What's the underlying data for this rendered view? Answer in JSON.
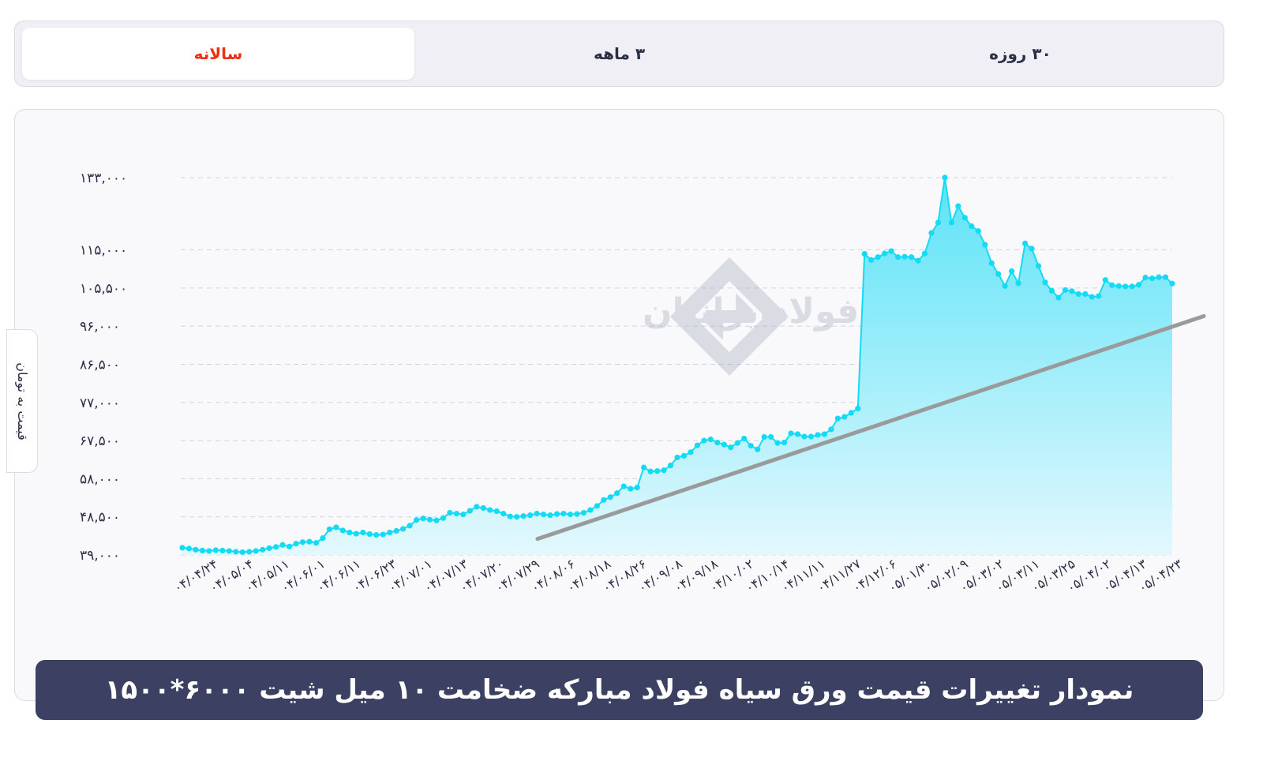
{
  "tabs": [
    {
      "label": "سالانه",
      "active": true
    },
    {
      "label": "۳ ماهه",
      "active": false
    },
    {
      "label": "۳۰ روزه",
      "active": false
    }
  ],
  "watermark": "فولادایرانیان",
  "yaxis_title": "قیمت به تومان",
  "caption": "نمودار تغییرات قیمت ورق سیاه فولاد مبارکه ضخامت ۱۰ میل شیت ۶۰۰۰*۱۵۰۰",
  "colors": {
    "line": "#14dbf5",
    "area_top": "#5ce3f7",
    "area_bottom": "#e3f8fd",
    "trend": "#9a9a9a",
    "active_tab": "#ef2e10",
    "caption_bg": "#3c4062"
  },
  "chart_data": {
    "type": "area",
    "ylabel": "قیمت به تومان",
    "ylim": [
      39000,
      133000
    ],
    "yticks": [
      {
        "value": 39000,
        "label": "۳۹,۰۰۰"
      },
      {
        "value": 48500,
        "label": "۴۸,۵۰۰"
      },
      {
        "value": 58000,
        "label": "۵۸,۰۰۰"
      },
      {
        "value": 67500,
        "label": "۶۷,۵۰۰"
      },
      {
        "value": 77000,
        "label": "۷۷,۰۰۰"
      },
      {
        "value": 86500,
        "label": "۸۶,۵۰۰"
      },
      {
        "value": 96000,
        "label": "۹۶,۰۰۰"
      },
      {
        "value": 105500,
        "label": "۱۰۵,۵۰۰"
      },
      {
        "value": 115000,
        "label": "۱۱۵,۰۰۰"
      },
      {
        "value": 133000,
        "label": "۱۳۳,۰۰۰"
      }
    ],
    "xtick_labels": [
      "۰۴/۰۴/۲۴",
      "۰۴/۰۵/۰۴",
      "۰۴/۰۵/۱۱",
      "۰۴/۰۶/۰۱",
      "۰۴/۰۶/۱۱",
      "۰۴/۰۶/۲۳",
      "۰۴/۰۷/۰۱",
      "۰۴/۰۷/۱۳",
      "۰۴/۰۷/۲۰",
      "۰۴/۰۷/۲۹",
      "۰۴/۰۸/۰۶",
      "۰۴/۰۸/۱۸",
      "۰۴/۰۸/۲۶",
      "۰۴/۰۹/۰۸",
      "۰۴/۰۹/۱۸",
      "۰۴/۱۰/۰۲",
      "۰۴/۱۰/۱۴",
      "۰۴/۱۱/۱۱",
      "۰۴/۱۱/۲۷",
      "۰۴/۱۲/۰۶",
      "۰۵/۰۱/۳۰",
      "۰۵/۰۲/۰۹",
      "۰۵/۰۳/۰۲",
      "۰۵/۰۳/۱۱",
      "۰۵/۰۳/۲۵",
      "۰۵/۰۴/۰۲",
      "۰۵/۰۴/۱۳",
      "۰۵/۰۴/۲۳"
    ],
    "values": [
      40800,
      40600,
      40300,
      40100,
      40000,
      40200,
      40100,
      40000,
      39800,
      39700,
      39800,
      40000,
      40300,
      40700,
      41000,
      41500,
      41100,
      41800,
      42200,
      42300,
      42000,
      43200,
      45400,
      45900,
      45100,
      44600,
      44300,
      44600,
      44200,
      44000,
      44100,
      44600,
      45000,
      45500,
      46300,
      47700,
      48100,
      47800,
      47600,
      48200,
      49500,
      49300,
      49100,
      50000,
      51000,
      50700,
      50200,
      49900,
      49300,
      48600,
      48500,
      48700,
      48900,
      49300,
      49100,
      48900,
      49200,
      49300,
      49100,
      49200,
      49500,
      50200,
      51200,
      52700,
      53400,
      54400,
      56100,
      55500,
      55800,
      60800,
      59800,
      59900,
      60100,
      61300,
      63300,
      63700,
      64600,
      66300,
      67500,
      67800,
      67000,
      66500,
      65800,
      66900,
      68000,
      66200,
      65300,
      68400,
      68400,
      66900,
      67000,
      69300,
      69100,
      68500,
      68500,
      68900,
      69100,
      70300,
      73000,
      73400,
      74400,
      75500,
      114000,
      112500,
      113200,
      114100,
      114700,
      113200,
      113300,
      113200,
      112300,
      114100,
      119200,
      121800,
      133000,
      121800,
      125900,
      123000,
      120900,
      119700,
      116300,
      111700,
      109000,
      106000,
      109700,
      106700,
      116600,
      115300,
      111000,
      106900,
      104800,
      103100,
      105000,
      104700,
      104000,
      104000,
      103300,
      103500,
      107500,
      106200,
      106000,
      105900,
      105900,
      106300,
      108100,
      107900,
      108200,
      108200,
      106600
    ],
    "trendline": {
      "start_value": 43000,
      "end_value": 98500
    }
  }
}
